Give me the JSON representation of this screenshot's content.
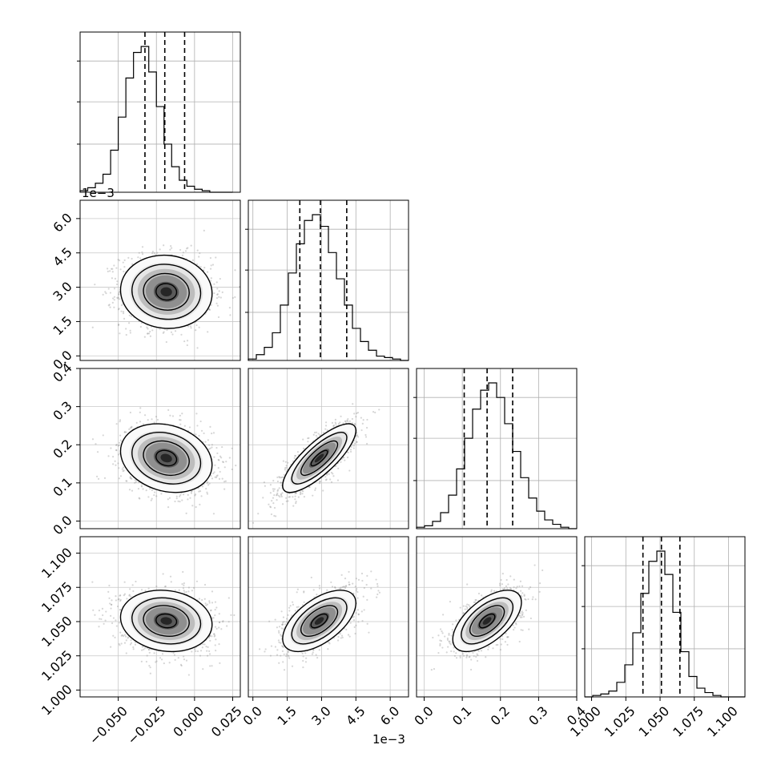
{
  "chart_data": {
    "type": "corner",
    "grid": true,
    "parameters": [
      {
        "range": [
          -0.075,
          0.03
        ],
        "ticks": [
          -0.05,
          -0.025,
          0.0,
          0.025
        ],
        "tick_labels": [
          "−0.050",
          "−0.025",
          "0.000",
          "0.025"
        ],
        "quantiles": [
          -0.0325,
          -0.0195,
          -0.0065
        ],
        "hist": {
          "edges_start": -0.075,
          "bin_width": 0.005,
          "counts": [
            1,
            3,
            6,
            12,
            28,
            50,
            76,
            93,
            97,
            80,
            57,
            32,
            17,
            8,
            4,
            2,
            1,
            0,
            0,
            0
          ]
        }
      },
      {
        "range": [
          -0.0002,
          0.0068
        ],
        "ticks": [
          0.0,
          0.0015,
          0.003,
          0.0045,
          0.006
        ],
        "tick_labels": [
          "0.0",
          "1.5",
          "3.0",
          "4.5",
          "6.0"
        ],
        "offset_label": "1e−3",
        "quantiles": [
          0.00205,
          0.00295,
          0.0041
        ],
        "hist": {
          "edges_start": -0.0002,
          "bin_width": 0.00035,
          "counts": [
            1,
            4,
            9,
            19,
            38,
            60,
            80,
            96,
            100,
            92,
            74,
            56,
            38,
            22,
            13,
            7,
            3,
            2,
            1,
            0
          ]
        }
      },
      {
        "range": [
          -0.02,
          0.4
        ],
        "ticks": [
          0.0,
          0.1,
          0.2,
          0.3,
          0.4
        ],
        "tick_labels": [
          "0.0",
          "0.1",
          "0.2",
          "0.3",
          "0.4"
        ],
        "quantiles": [
          0.105,
          0.165,
          0.232
        ],
        "hist": {
          "edges_start": -0.02,
          "bin_width": 0.021,
          "counts": [
            1,
            2,
            5,
            11,
            23,
            41,
            62,
            82,
            95,
            100,
            90,
            72,
            53,
            35,
            21,
            12,
            6,
            3,
            1,
            0
          ]
        }
      },
      {
        "range": [
          0.995,
          1.112
        ],
        "ticks": [
          1.0,
          1.025,
          1.05,
          1.075,
          1.1
        ],
        "tick_labels": [
          "1.000",
          "1.025",
          "1.050",
          "1.075",
          "1.100"
        ],
        "quantiles": [
          1.0375,
          1.051,
          1.0645
        ],
        "hist": {
          "edges_start": 0.995,
          "bin_width": 0.00585,
          "counts": [
            0,
            1,
            2,
            4,
            10,
            22,
            44,
            71,
            93,
            100,
            84,
            58,
            31,
            14,
            6,
            3,
            1,
            0,
            0,
            0
          ]
        }
      }
    ],
    "pairs": [
      {
        "row": 1,
        "col": 0,
        "center": [
          -0.0185,
          0.0028
        ],
        "sd": [
          0.015,
          0.0008
        ],
        "rho": -0.05
      },
      {
        "row": 2,
        "col": 0,
        "center": [
          -0.0185,
          0.165
        ],
        "sd": [
          0.015,
          0.045
        ],
        "rho": -0.2
      },
      {
        "row": 2,
        "col": 1,
        "center": [
          0.0029,
          0.165
        ],
        "sd": [
          0.0008,
          0.045
        ],
        "rho": 0.8
      },
      {
        "row": 3,
        "col": 0,
        "center": [
          -0.0185,
          1.0505
        ],
        "sd": [
          0.015,
          0.0112
        ],
        "rho": -0.12
      },
      {
        "row": 3,
        "col": 1,
        "center": [
          0.0029,
          1.0505
        ],
        "sd": [
          0.0008,
          0.0112
        ],
        "rho": 0.58
      },
      {
        "row": 3,
        "col": 2,
        "center": [
          0.165,
          1.0505
        ],
        "sd": [
          0.045,
          0.0112
        ],
        "rho": 0.6
      }
    ]
  }
}
